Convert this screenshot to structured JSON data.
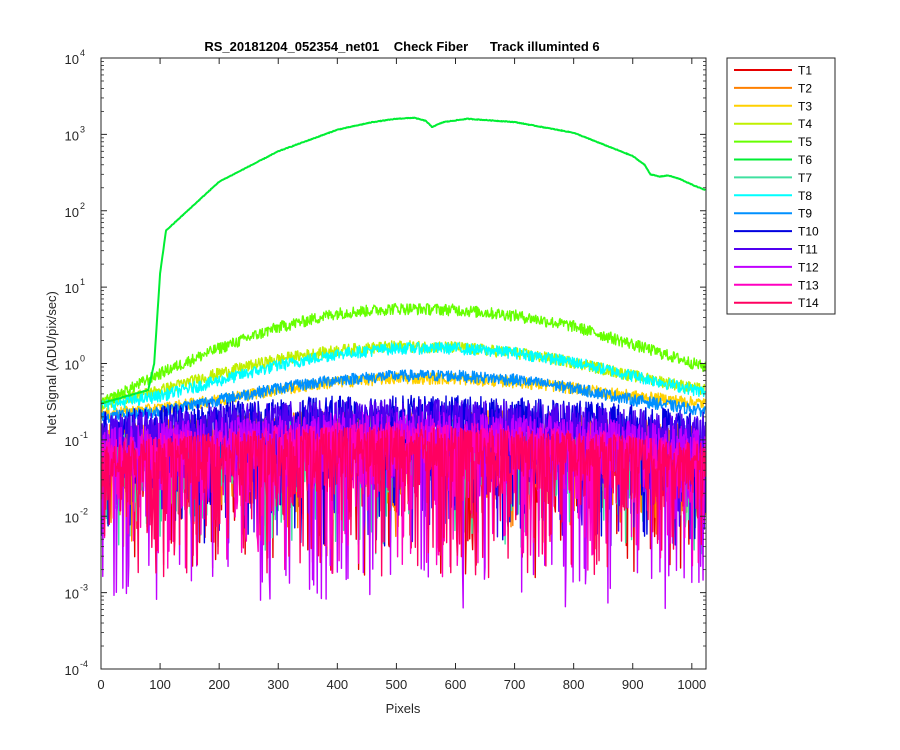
{
  "chart_data": {
    "type": "line",
    "title": "RS_20181204_052354_net01    Check Fiber      Track illuminted 6",
    "xlabel": "Pixels",
    "ylabel": "Net Signal (ADU/pix/sec)",
    "xlim": [
      0,
      1024
    ],
    "ylim": [
      0.0001,
      10000
    ],
    "yscale": "log",
    "grid": false,
    "legend_position": "outside-top-right",
    "x_ticks": [
      0,
      100,
      200,
      300,
      400,
      500,
      600,
      700,
      800,
      900,
      1000
    ],
    "x_tick_labels": [
      "0",
      "100",
      "200",
      "300",
      "400",
      "500",
      "600",
      "700",
      "800",
      "900",
      "1000"
    ],
    "y_ticks": [
      0.0001,
      0.001,
      0.01,
      0.1,
      1,
      10,
      100,
      1000,
      10000
    ],
    "y_tick_labels": [
      {
        "base": "10",
        "exp": "-4"
      },
      {
        "base": "10",
        "exp": "-3"
      },
      {
        "base": "10",
        "exp": "-2"
      },
      {
        "base": "10",
        "exp": "-1"
      },
      {
        "base": "10",
        "exp": "0"
      },
      {
        "base": "10",
        "exp": "1"
      },
      {
        "base": "10",
        "exp": "2"
      },
      {
        "base": "10",
        "exp": "3"
      },
      {
        "base": "10",
        "exp": "4"
      }
    ],
    "series": [
      {
        "name": "T1",
        "color": "#e60000",
        "style": "noise",
        "level": 0.08,
        "min": 0.0015
      },
      {
        "name": "T2",
        "color": "#ff8000",
        "style": "noise",
        "level": 0.12,
        "min": 0.004
      },
      {
        "name": "T3",
        "color": "#ffd000",
        "style": "hump",
        "x": [
          0,
          100,
          200,
          300,
          400,
          500,
          600,
          700,
          800,
          900,
          1024
        ],
        "values": [
          0.22,
          0.26,
          0.34,
          0.46,
          0.58,
          0.65,
          0.64,
          0.58,
          0.48,
          0.38,
          0.3
        ]
      },
      {
        "name": "T4",
        "color": "#c0f000",
        "style": "hump",
        "x": [
          0,
          100,
          200,
          300,
          400,
          500,
          600,
          700,
          800,
          900,
          1024
        ],
        "values": [
          0.3,
          0.45,
          0.75,
          1.15,
          1.5,
          1.7,
          1.65,
          1.4,
          1.05,
          0.7,
          0.45
        ]
      },
      {
        "name": "T5",
        "color": "#66ff00",
        "style": "hump",
        "x": [
          0,
          100,
          200,
          300,
          400,
          500,
          600,
          700,
          800,
          900,
          1024
        ],
        "values": [
          0.3,
          0.75,
          1.6,
          3.0,
          4.6,
          5.3,
          5.1,
          4.3,
          3.1,
          1.8,
          0.9
        ]
      },
      {
        "name": "T6",
        "color": "#00ee33",
        "style": "main",
        "x": [
          0,
          80,
          90,
          100,
          110,
          200,
          300,
          400,
          460,
          500,
          530,
          550,
          560,
          580,
          620,
          700,
          800,
          900,
          920,
          930,
          945,
          960,
          980,
          1000,
          1024
        ],
        "values": [
          0.3,
          0.45,
          1.0,
          15,
          55,
          240,
          600,
          1150,
          1450,
          1600,
          1650,
          1500,
          1250,
          1450,
          1600,
          1450,
          1050,
          520,
          400,
          300,
          280,
          290,
          260,
          220,
          185
        ]
      },
      {
        "name": "T7",
        "color": "#40e0a0",
        "style": "noise",
        "level": 0.09,
        "min": 0.003
      },
      {
        "name": "T8",
        "color": "#00ffff",
        "style": "hump",
        "x": [
          0,
          100,
          200,
          300,
          400,
          500,
          600,
          700,
          800,
          900,
          1024
        ],
        "values": [
          0.28,
          0.38,
          0.6,
          0.95,
          1.35,
          1.6,
          1.6,
          1.4,
          1.05,
          0.7,
          0.42
        ]
      },
      {
        "name": "T9",
        "color": "#0090ff",
        "style": "hump",
        "x": [
          0,
          100,
          200,
          300,
          400,
          500,
          600,
          700,
          800,
          900,
          1024
        ],
        "values": [
          0.2,
          0.24,
          0.34,
          0.48,
          0.62,
          0.7,
          0.7,
          0.62,
          0.48,
          0.34,
          0.24
        ]
      },
      {
        "name": "T10",
        "color": "#0000e0",
        "style": "noise",
        "level": 0.18,
        "min": 0.004
      },
      {
        "name": "T11",
        "color": "#5000f0",
        "style": "noise",
        "level": 0.16,
        "min": 0.004
      },
      {
        "name": "T12",
        "color": "#c000ff",
        "style": "noise",
        "level": 0.11,
        "min": 0.0006
      },
      {
        "name": "T13",
        "color": "#ff00c0",
        "style": "noise",
        "level": 0.08,
        "min": 0.0015
      },
      {
        "name": "T14",
        "color": "#ff0060",
        "style": "noise",
        "level": 0.07,
        "min": 0.0015
      }
    ]
  }
}
